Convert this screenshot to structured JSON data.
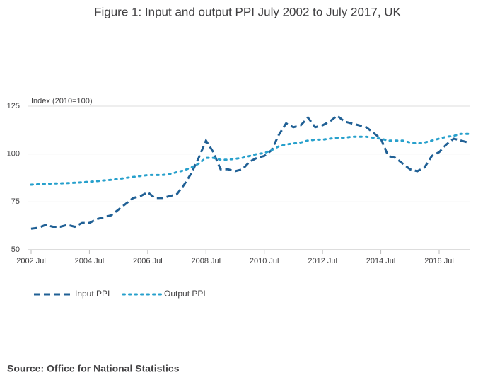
{
  "chart_data": {
    "type": "line",
    "title": "Figure 1: Input and output PPI July 2002 to July 2017, UK",
    "y_label": "Index (2010=100)",
    "source": "Source: Office for National Statistics",
    "x": [
      "2002 Jul",
      "2002 Oct",
      "2003 Jan",
      "2003 Apr",
      "2003 Jul",
      "2003 Oct",
      "2004 Jan",
      "2004 Apr",
      "2004 Jul",
      "2004 Oct",
      "2005 Jan",
      "2005 Apr",
      "2005 Jul",
      "2005 Oct",
      "2006 Jan",
      "2006 Apr",
      "2006 Jul",
      "2006 Oct",
      "2007 Jan",
      "2007 Apr",
      "2007 Jul",
      "2007 Oct",
      "2008 Jan",
      "2008 Apr",
      "2008 Jul",
      "2008 Oct",
      "2009 Jan",
      "2009 Apr",
      "2009 Jul",
      "2009 Oct",
      "2010 Jan",
      "2010 Apr",
      "2010 Jul",
      "2010 Oct",
      "2011 Jan",
      "2011 Apr",
      "2011 Jul",
      "2011 Oct",
      "2012 Jan",
      "2012 Apr",
      "2012 Jul",
      "2012 Oct",
      "2013 Jan",
      "2013 Apr",
      "2013 Jul",
      "2013 Oct",
      "2014 Jan",
      "2014 Apr",
      "2014 Jul",
      "2014 Oct",
      "2015 Jan",
      "2015 Apr",
      "2015 Jul",
      "2015 Oct",
      "2016 Jan",
      "2016 Apr",
      "2016 Jul",
      "2016 Oct",
      "2017 Jan",
      "2017 Apr",
      "2017 Jul"
    ],
    "xticks": [
      "2002 Jul",
      "2004 Jul",
      "2006 Jul",
      "2008 Jul",
      "2010 Jul",
      "2012 Jul",
      "2014 Jul",
      "2016 Jul"
    ],
    "series": [
      {
        "name": "Input PPI",
        "color": "#206095",
        "style": "dashed",
        "values": [
          61,
          61.5,
          63,
          62,
          62,
          63,
          62,
          64,
          64,
          66,
          67,
          68,
          71,
          74,
          77,
          78,
          80,
          77,
          77,
          78,
          79,
          84,
          90,
          98,
          107,
          101,
          92,
          92,
          91,
          92,
          96,
          98,
          99,
          102,
          110,
          116,
          114,
          115,
          119,
          114,
          115,
          117,
          120,
          117,
          116,
          115,
          114,
          111,
          108,
          99,
          98,
          95,
          92,
          91,
          93,
          99,
          101,
          105,
          108,
          107,
          106
        ]
      },
      {
        "name": "Output PPI",
        "color": "#27a0cc",
        "style": "dotted",
        "values": [
          84,
          84.2,
          84.4,
          84.6,
          84.7,
          84.8,
          85,
          85.2,
          85.5,
          85.8,
          86.2,
          86.5,
          87,
          87.5,
          88,
          88.5,
          89,
          89,
          89,
          89.5,
          90.5,
          91.5,
          93,
          95,
          98,
          98,
          97,
          97,
          97.5,
          98,
          99,
          100,
          100.5,
          102,
          104,
          105,
          105.5,
          106,
          107,
          107.5,
          107.5,
          108,
          108.5,
          108.5,
          109,
          109,
          109,
          108.5,
          108,
          107,
          107,
          107,
          106,
          105.5,
          106,
          107,
          108,
          109,
          109.5,
          110.5,
          110.5
        ]
      }
    ],
    "ylim": [
      50,
      125
    ],
    "yticks": [
      50,
      75,
      100,
      125
    ],
    "grid": true,
    "legend": "bottom"
  }
}
